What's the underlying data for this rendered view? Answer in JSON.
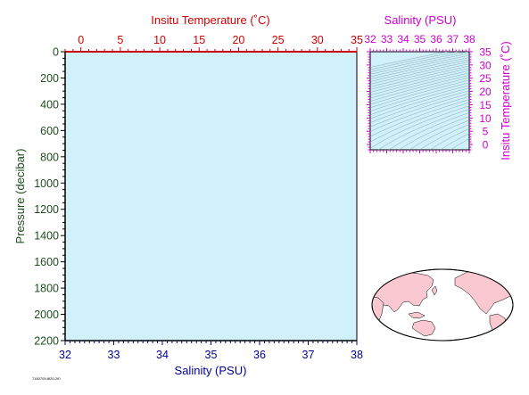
{
  "footer_code": "7160709-8f20-2f0",
  "colors": {
    "plot_bg": "#d1f1fa",
    "pressure_axis": "#1e4d1e",
    "temperature_axis": "#cc0000",
    "salinity_axis": "#000099",
    "ts_axis": "#cc00cc",
    "density_contour": "#7fa6b5",
    "land": "#f9c8d0",
    "ocean": "#ffffff"
  },
  "chart_data": [
    {
      "type": "line",
      "panel": "profile",
      "series": [],
      "left_axis": {
        "label": "Pressure (decibar)",
        "range": [
          0,
          2200
        ],
        "inverted": true,
        "ticks": [
          "0",
          "200",
          "400",
          "600",
          "800",
          "1000",
          "1200",
          "1400",
          "1600",
          "1800",
          "2000",
          "2200"
        ]
      },
      "top_axis": {
        "label": "Insitu Temperature (˚C)",
        "range": [
          -2,
          35
        ],
        "ticks": [
          "0",
          "5",
          "10",
          "15",
          "20",
          "25",
          "30",
          "35"
        ]
      },
      "bottom_axis": {
        "label": "Salinity (PSU)",
        "range": [
          32,
          38
        ],
        "ticks": [
          "32",
          "33",
          "34",
          "35",
          "36",
          "37",
          "38"
        ]
      },
      "grid": false
    },
    {
      "type": "scatter",
      "panel": "temperature-salinity",
      "series": [],
      "top_axis": {
        "label": "Salinity (PSU)",
        "range": [
          32,
          38
        ],
        "ticks": [
          "32",
          "33",
          "34",
          "35",
          "36",
          "37",
          "38"
        ]
      },
      "right_axis": {
        "label": "Insitu Temperature (˚C)",
        "range": [
          -2,
          35
        ],
        "ticks": [
          "0",
          "5",
          "10",
          "15",
          "20",
          "25",
          "30",
          "35"
        ]
      },
      "density_contours": true,
      "grid": false
    }
  ]
}
